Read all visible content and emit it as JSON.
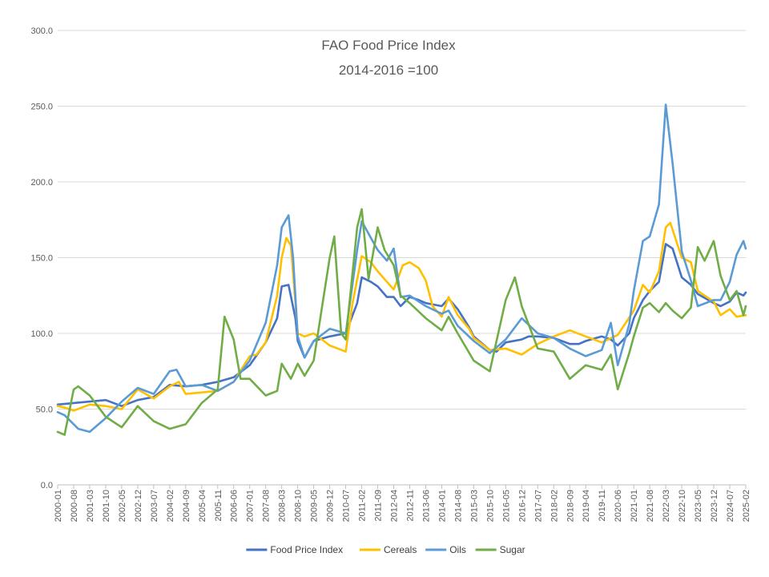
{
  "chart_data": {
    "type": "line",
    "title": "FAO Food Price Index",
    "subtitle": "2014-2016 =100",
    "xlabel": "",
    "ylabel": "",
    "ylim": [
      0,
      300
    ],
    "yticks": [
      "0.0",
      "50.0",
      "100.0",
      "150.0",
      "200.0",
      "250.0",
      "300.0"
    ],
    "grid": true,
    "legend_position": "bottom",
    "x_tick_labels": [
      "2000-01",
      "2000-08",
      "2001-03",
      "2001-10",
      "2002-05",
      "2002-12",
      "2003-07",
      "2004-02",
      "2004-09",
      "2005-04",
      "2005-11",
      "2006-06",
      "2007-01",
      "2007-08",
      "2008-03",
      "2008-10",
      "2009-05",
      "2009-12",
      "2010-07",
      "2011-02",
      "2011-09",
      "2012-04",
      "2012-11",
      "2013-06",
      "2014-01",
      "2014-08",
      "2015-03",
      "2015-10",
      "2016-05",
      "2016-12",
      "2017-07",
      "2018-02",
      "2018-09",
      "2019-04",
      "2019-11",
      "2020-06",
      "2021-01",
      "2021-08",
      "2022-03",
      "2022-10",
      "2023-05",
      "2023-12",
      "2024-07",
      "2025-02"
    ],
    "x_start": "2000-01",
    "x_end": "2025-02",
    "series_keyframes_note": "values per series listed as [date, index value] sampled points; lines interpolated between them",
    "series": [
      {
        "name": "Food Price Index",
        "color": "#4472C4",
        "points": [
          [
            "2000-01",
            53
          ],
          [
            "2000-08",
            54
          ],
          [
            "2001-03",
            55
          ],
          [
            "2001-10",
            56
          ],
          [
            "2002-05",
            52
          ],
          [
            "2002-12",
            56
          ],
          [
            "2003-07",
            58
          ],
          [
            "2004-02",
            66
          ],
          [
            "2004-09",
            65
          ],
          [
            "2005-04",
            66
          ],
          [
            "2005-11",
            68
          ],
          [
            "2006-06",
            71
          ],
          [
            "2007-01",
            79
          ],
          [
            "2007-08",
            94
          ],
          [
            "2008-01",
            110
          ],
          [
            "2008-03",
            131
          ],
          [
            "2008-06",
            132
          ],
          [
            "2008-09",
            110
          ],
          [
            "2008-10",
            95
          ],
          [
            "2009-01",
            84
          ],
          [
            "2009-05",
            95
          ],
          [
            "2009-12",
            98
          ],
          [
            "2010-07",
            100
          ],
          [
            "2010-12",
            120
          ],
          [
            "2011-02",
            137
          ],
          [
            "2011-06",
            134
          ],
          [
            "2011-09",
            131
          ],
          [
            "2012-01",
            124
          ],
          [
            "2012-04",
            124
          ],
          [
            "2012-07",
            118
          ],
          [
            "2012-11",
            124
          ],
          [
            "2013-03",
            122
          ],
          [
            "2013-06",
            120
          ],
          [
            "2014-01",
            118
          ],
          [
            "2014-04",
            123
          ],
          [
            "2014-08",
            116
          ],
          [
            "2015-01",
            104
          ],
          [
            "2015-03",
            98
          ],
          [
            "2015-10",
            89
          ],
          [
            "2016-01",
            88
          ],
          [
            "2016-05",
            94
          ],
          [
            "2016-12",
            96
          ],
          [
            "2017-03",
            98
          ],
          [
            "2017-07",
            98
          ],
          [
            "2018-02",
            97
          ],
          [
            "2018-09",
            93
          ],
          [
            "2019-01",
            93
          ],
          [
            "2019-04",
            95
          ],
          [
            "2019-11",
            98
          ],
          [
            "2020-03",
            96
          ],
          [
            "2020-06",
            92
          ],
          [
            "2020-11",
            100
          ],
          [
            "2021-01",
            110
          ],
          [
            "2021-05",
            122
          ],
          [
            "2021-08",
            128
          ],
          [
            "2021-12",
            134
          ],
          [
            "2022-03",
            159
          ],
          [
            "2022-06",
            156
          ],
          [
            "2022-10",
            137
          ],
          [
            "2023-02",
            132
          ],
          [
            "2023-05",
            126
          ],
          [
            "2023-12",
            120
          ],
          [
            "2024-03",
            118
          ],
          [
            "2024-07",
            121
          ],
          [
            "2024-10",
            127
          ],
          [
            "2025-01",
            125
          ],
          [
            "2025-02",
            127
          ]
        ]
      },
      {
        "name": "Cereals",
        "color": "#FFC000",
        "points": [
          [
            "2000-01",
            52
          ],
          [
            "2000-04",
            51
          ],
          [
            "2000-08",
            49
          ],
          [
            "2001-03",
            53
          ],
          [
            "2001-10",
            52
          ],
          [
            "2002-05",
            50
          ],
          [
            "2002-12",
            63
          ],
          [
            "2003-07",
            57
          ],
          [
            "2004-02",
            65
          ],
          [
            "2004-06",
            68
          ],
          [
            "2004-09",
            60
          ],
          [
            "2005-04",
            61
          ],
          [
            "2005-11",
            62
          ],
          [
            "2006-06",
            68
          ],
          [
            "2007-01",
            85
          ],
          [
            "2007-04",
            86
          ],
          [
            "2007-08",
            94
          ],
          [
            "2008-01",
            125
          ],
          [
            "2008-03",
            150
          ],
          [
            "2008-05",
            163
          ],
          [
            "2008-07",
            158
          ],
          [
            "2008-09",
            120
          ],
          [
            "2008-10",
            100
          ],
          [
            "2009-01",
            98
          ],
          [
            "2009-05",
            100
          ],
          [
            "2009-12",
            92
          ],
          [
            "2010-07",
            88
          ],
          [
            "2010-10",
            120
          ],
          [
            "2011-02",
            151
          ],
          [
            "2011-06",
            147
          ],
          [
            "2011-09",
            141
          ],
          [
            "2012-01",
            134
          ],
          [
            "2012-04",
            129
          ],
          [
            "2012-08",
            145
          ],
          [
            "2012-11",
            147
          ],
          [
            "2013-03",
            143
          ],
          [
            "2013-06",
            135
          ],
          [
            "2013-09",
            118
          ],
          [
            "2014-01",
            111
          ],
          [
            "2014-04",
            124
          ],
          [
            "2014-08",
            112
          ],
          [
            "2015-01",
            103
          ],
          [
            "2015-03",
            97
          ],
          [
            "2015-10",
            89
          ],
          [
            "2016-05",
            90
          ],
          [
            "2016-12",
            86
          ],
          [
            "2017-07",
            93
          ],
          [
            "2018-02",
            98
          ],
          [
            "2018-09",
            102
          ],
          [
            "2019-04",
            98
          ],
          [
            "2019-11",
            94
          ],
          [
            "2020-06",
            99
          ],
          [
            "2021-01",
            115
          ],
          [
            "2021-05",
            132
          ],
          [
            "2021-08",
            127
          ],
          [
            "2021-12",
            141
          ],
          [
            "2022-03",
            170
          ],
          [
            "2022-05",
            173
          ],
          [
            "2022-10",
            150
          ],
          [
            "2023-02",
            147
          ],
          [
            "2023-05",
            128
          ],
          [
            "2023-12",
            121
          ],
          [
            "2024-03",
            112
          ],
          [
            "2024-07",
            116
          ],
          [
            "2024-10",
            111
          ],
          [
            "2025-02",
            112
          ]
        ]
      },
      {
        "name": "Oils",
        "color": "#5B9BD5",
        "points": [
          [
            "2000-01",
            48
          ],
          [
            "2000-04",
            46
          ],
          [
            "2000-08",
            40
          ],
          [
            "2000-10",
            37
          ],
          [
            "2001-03",
            35
          ],
          [
            "2001-10",
            44
          ],
          [
            "2002-05",
            55
          ],
          [
            "2002-12",
            64
          ],
          [
            "2003-07",
            60
          ],
          [
            "2004-02",
            75
          ],
          [
            "2004-05",
            76
          ],
          [
            "2004-09",
            65
          ],
          [
            "2005-04",
            66
          ],
          [
            "2005-11",
            62
          ],
          [
            "2006-06",
            68
          ],
          [
            "2007-01",
            82
          ],
          [
            "2007-08",
            107
          ],
          [
            "2008-01",
            145
          ],
          [
            "2008-03",
            170
          ],
          [
            "2008-06",
            178
          ],
          [
            "2008-08",
            150
          ],
          [
            "2008-10",
            98
          ],
          [
            "2009-01",
            84
          ],
          [
            "2009-05",
            95
          ],
          [
            "2009-12",
            103
          ],
          [
            "2010-07",
            100
          ],
          [
            "2010-12",
            155
          ],
          [
            "2011-02",
            174
          ],
          [
            "2011-06",
            163
          ],
          [
            "2011-09",
            155
          ],
          [
            "2012-01",
            148
          ],
          [
            "2012-04",
            156
          ],
          [
            "2012-07",
            124
          ],
          [
            "2012-11",
            125
          ],
          [
            "2013-06",
            118
          ],
          [
            "2014-01",
            113
          ],
          [
            "2014-04",
            115
          ],
          [
            "2014-08",
            105
          ],
          [
            "2015-03",
            95
          ],
          [
            "2015-10",
            87
          ],
          [
            "2016-05",
            96
          ],
          [
            "2016-12",
            110
          ],
          [
            "2017-07",
            100
          ],
          [
            "2018-02",
            97
          ],
          [
            "2018-09",
            90
          ],
          [
            "2019-04",
            85
          ],
          [
            "2019-11",
            89
          ],
          [
            "2020-03",
            107
          ],
          [
            "2020-06",
            79
          ],
          [
            "2020-11",
            106
          ],
          [
            "2021-01",
            128
          ],
          [
            "2021-05",
            161
          ],
          [
            "2021-08",
            164
          ],
          [
            "2021-12",
            185
          ],
          [
            "2022-03",
            251
          ],
          [
            "2022-06",
            212
          ],
          [
            "2022-10",
            154
          ],
          [
            "2023-02",
            135
          ],
          [
            "2023-05",
            118
          ],
          [
            "2023-12",
            122
          ],
          [
            "2024-03",
            122
          ],
          [
            "2024-07",
            134
          ],
          [
            "2024-10",
            152
          ],
          [
            "2025-01",
            161
          ],
          [
            "2025-02",
            156
          ]
        ]
      },
      {
        "name": "Sugar",
        "color": "#70AD47",
        "points": [
          [
            "2000-01",
            35
          ],
          [
            "2000-04",
            33
          ],
          [
            "2000-08",
            63
          ],
          [
            "2000-10",
            65
          ],
          [
            "2001-03",
            59
          ],
          [
            "2001-10",
            45
          ],
          [
            "2002-05",
            38
          ],
          [
            "2002-12",
            52
          ],
          [
            "2003-07",
            42
          ],
          [
            "2004-02",
            37
          ],
          [
            "2004-09",
            40
          ],
          [
            "2005-04",
            54
          ],
          [
            "2005-11",
            63
          ],
          [
            "2006-02",
            111
          ],
          [
            "2006-06",
            96
          ],
          [
            "2006-09",
            70
          ],
          [
            "2007-01",
            70
          ],
          [
            "2007-08",
            59
          ],
          [
            "2008-01",
            62
          ],
          [
            "2008-03",
            80
          ],
          [
            "2008-07",
            70
          ],
          [
            "2008-10",
            80
          ],
          [
            "2009-01",
            72
          ],
          [
            "2009-05",
            82
          ],
          [
            "2009-12",
            150
          ],
          [
            "2010-02",
            164
          ],
          [
            "2010-05",
            100
          ],
          [
            "2010-07",
            96
          ],
          [
            "2010-12",
            170
          ],
          [
            "2011-02",
            182
          ],
          [
            "2011-05",
            136
          ],
          [
            "2011-09",
            170
          ],
          [
            "2011-12",
            155
          ],
          [
            "2012-04",
            145
          ],
          [
            "2012-07",
            125
          ],
          [
            "2012-11",
            120
          ],
          [
            "2013-06",
            110
          ],
          [
            "2014-01",
            102
          ],
          [
            "2014-04",
            111
          ],
          [
            "2014-08",
            100
          ],
          [
            "2015-03",
            82
          ],
          [
            "2015-10",
            75
          ],
          [
            "2016-05",
            122
          ],
          [
            "2016-09",
            137
          ],
          [
            "2016-12",
            118
          ],
          [
            "2017-07",
            90
          ],
          [
            "2018-02",
            88
          ],
          [
            "2018-09",
            70
          ],
          [
            "2019-04",
            79
          ],
          [
            "2019-11",
            76
          ],
          [
            "2020-03",
            86
          ],
          [
            "2020-06",
            63
          ],
          [
            "2020-11",
            87
          ],
          [
            "2021-01",
            98
          ],
          [
            "2021-05",
            117
          ],
          [
            "2021-08",
            120
          ],
          [
            "2021-12",
            114
          ],
          [
            "2022-03",
            120
          ],
          [
            "2022-06",
            115
          ],
          [
            "2022-10",
            110
          ],
          [
            "2023-02",
            117
          ],
          [
            "2023-05",
            157
          ],
          [
            "2023-08",
            148
          ],
          [
            "2023-12",
            161
          ],
          [
            "2024-03",
            138
          ],
          [
            "2024-07",
            122
          ],
          [
            "2024-10",
            128
          ],
          [
            "2025-01",
            112
          ],
          [
            "2025-02",
            118
          ]
        ]
      }
    ]
  }
}
